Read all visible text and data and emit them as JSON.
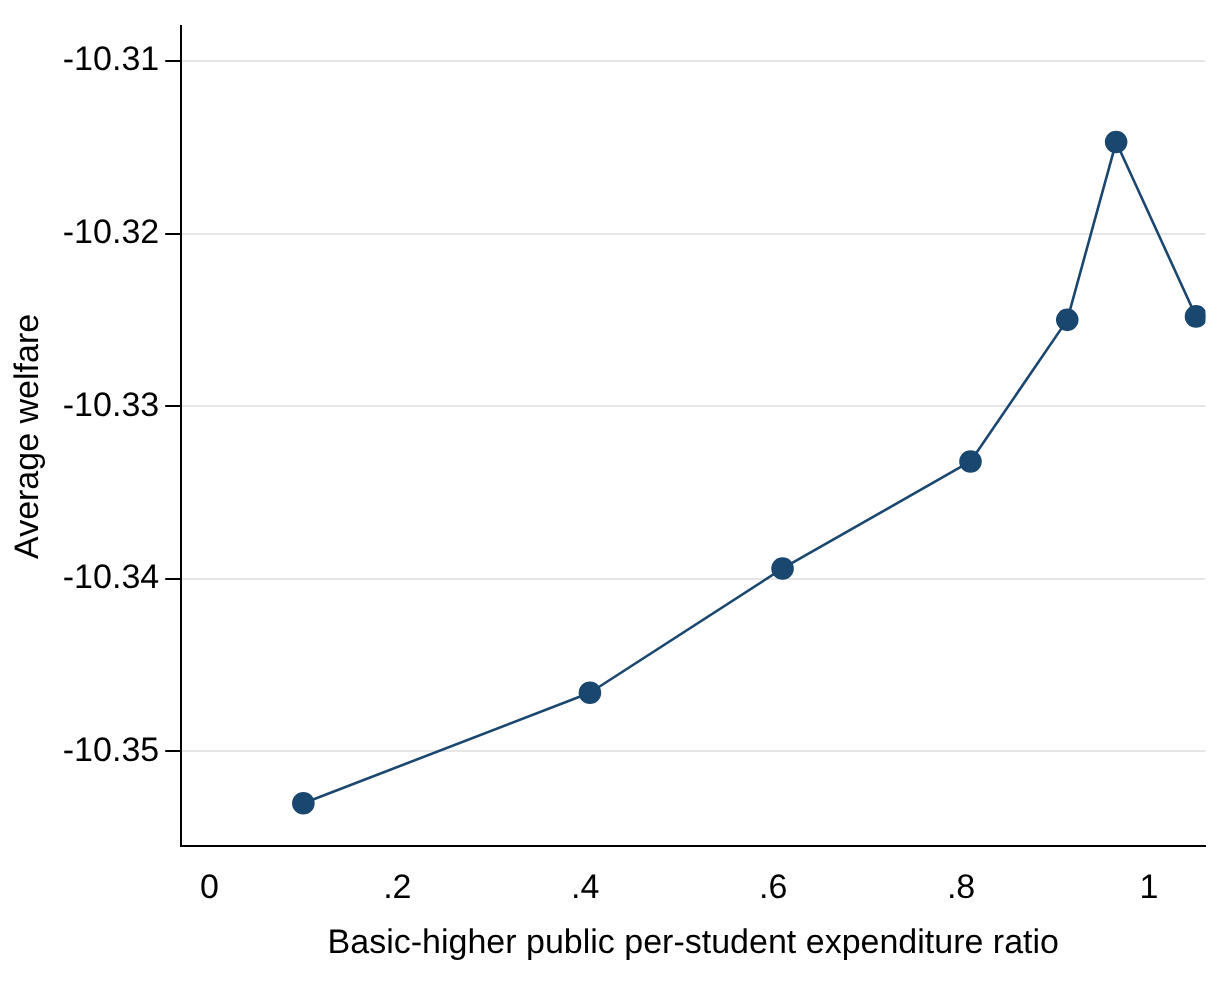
{
  "chart_data": {
    "type": "line",
    "xlabel": "Basic-higher public per-student expenditure ratio",
    "ylabel": "Average welfare",
    "x": [
      0.1,
      0.405,
      0.61,
      0.81,
      0.913,
      0.965,
      1.05
    ],
    "series": [
      {
        "color": "#1a476f",
        "values": [
          -10.353,
          -10.3466,
          -10.3394,
          -10.3332,
          -10.325,
          -10.3147,
          -10.3248
        ]
      }
    ],
    "xlim": [
      -0.03,
      1.06
    ],
    "ylim": [
      -10.3555,
      -10.308
    ],
    "xticks": [
      0,
      {
        "value": 0.2,
        "label": ".2"
      },
      {
        "value": 0.4,
        "label": ".4"
      },
      {
        "value": 0.6,
        "label": ".6"
      },
      {
        "value": 0.8,
        "label": ".8"
      },
      1
    ],
    "yticks": [
      -10.35,
      -10.34,
      -10.33,
      -10.32,
      -10.31
    ],
    "grid": "y",
    "legend": false,
    "marker": "circle",
    "line_style": "solid"
  }
}
